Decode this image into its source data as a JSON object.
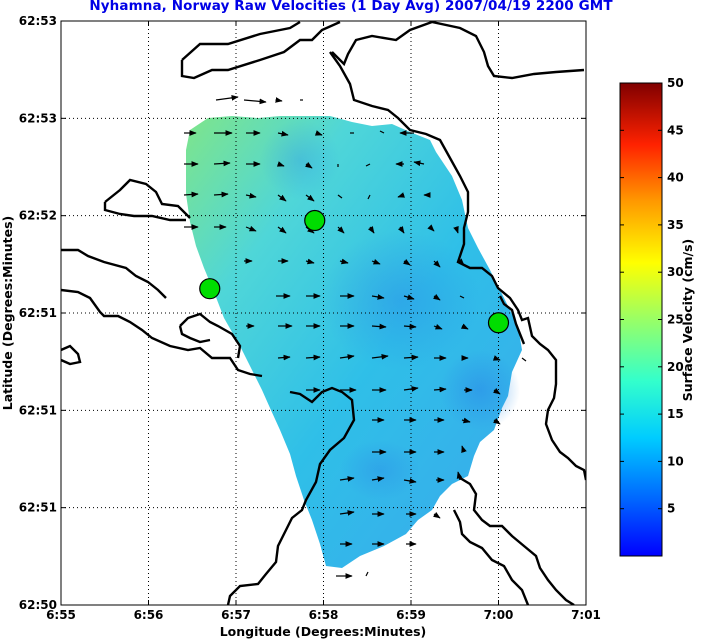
{
  "title": "Nyhamna, Norway Raw Velocities (1 Day Avg) 2007/04/19 2200 GMT",
  "chart_data": {
    "type": "heatmap",
    "xlabel": "Longitude (Degrees:Minutes)",
    "ylabel": "Latitude (Degrees:Minutes)",
    "x_ticks": [
      "6:55",
      "6:56",
      "6:57",
      "6:58",
      "6:59",
      "7:00",
      "7:01"
    ],
    "y_ticks": [
      "62:53",
      "62:53",
      "62:52",
      "62:51",
      "62:51",
      "62:51",
      "62:50"
    ],
    "grid": true,
    "colorbar": {
      "label": "Surface Velocity (cm/s)",
      "min": 0,
      "max": 50,
      "ticks": [
        5,
        10,
        15,
        20,
        25,
        30,
        35,
        40,
        45,
        50
      ]
    },
    "stations": [
      {
        "lon_min": 56.7,
        "lat_step": 2.75
      },
      {
        "lon_min": 57.9,
        "lat_step": 2.05
      },
      {
        "lon_min": 60.0,
        "lat_step": 3.1
      }
    ]
  }
}
